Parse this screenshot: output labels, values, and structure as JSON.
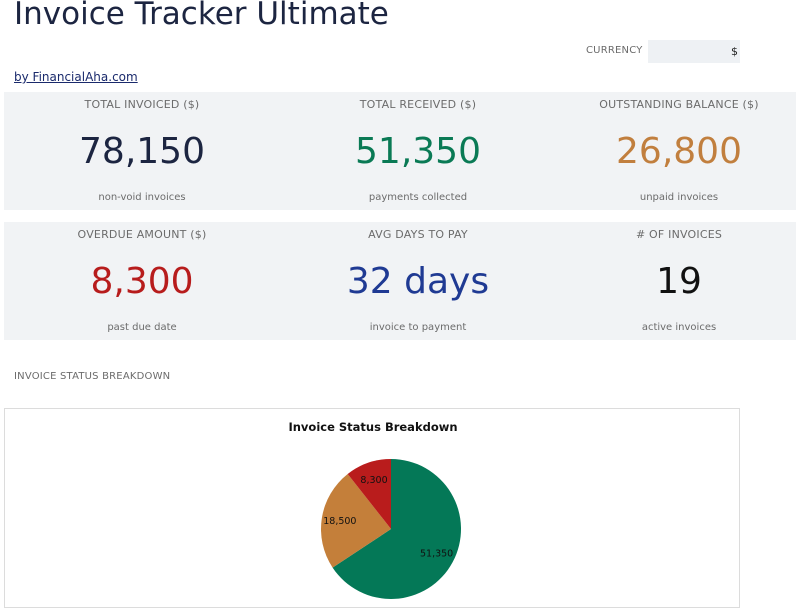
{
  "header": {
    "title": "Invoice Tracker Ultimate",
    "byline": "by FinancialAha.com",
    "currency_label": "CURRENCY",
    "currency_value": "$"
  },
  "kpis": {
    "total_invoiced": {
      "label": "TOTAL INVOICED ($)",
      "value": "78,150",
      "sub": "non-void invoices",
      "color": "#1c2541"
    },
    "total_received": {
      "label": "TOTAL RECEIVED ($)",
      "value": "51,350",
      "sub": "payments collected",
      "color": "#0a7a55"
    },
    "outstanding": {
      "label": "OUTSTANDING BALANCE ($)",
      "value": "26,800",
      "sub": "unpaid invoices",
      "color": "#c17f3e"
    },
    "overdue": {
      "label": "OVERDUE AMOUNT ($)",
      "value": "8,300",
      "sub": "past due date",
      "color": "#b71c1c"
    },
    "avg_days": {
      "label": "AVG DAYS TO PAY",
      "value": "32 days",
      "sub": "invoice to payment",
      "color": "#1f3a93"
    },
    "count": {
      "label": "# OF INVOICES",
      "value": "19",
      "sub": "active invoices",
      "color": "#111111"
    }
  },
  "section": {
    "label": "INVOICE STATUS BREAKDOWN"
  },
  "chart_data": {
    "type": "pie",
    "title": "Invoice Status Breakdown",
    "slices": [
      {
        "value": 51350,
        "label": "51,350",
        "color": "#047857"
      },
      {
        "value": 18500,
        "label": "18,500",
        "color": "#c47f3a"
      },
      {
        "value": 8300,
        "label": "8,300",
        "color": "#b91c1c"
      }
    ]
  }
}
